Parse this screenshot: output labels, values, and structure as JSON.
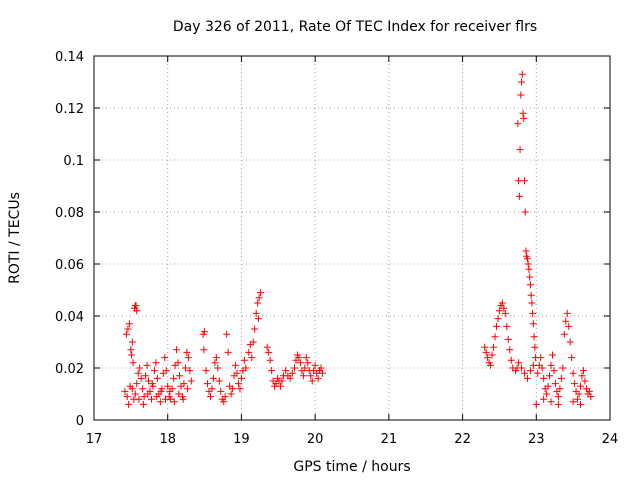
{
  "chart_data": {
    "type": "scatter",
    "title": "Day 326 of 2011, Rate Of TEC Index for receiver flrs",
    "xlabel": "GPS time / hours",
    "ylabel": "ROTI / TECUs",
    "xlim": [
      17,
      24
    ],
    "ylim": [
      0,
      0.14
    ],
    "xticks": [
      17,
      18,
      19,
      20,
      21,
      22,
      23,
      24
    ],
    "xtick_labels": [
      "17",
      "18",
      "19",
      "20",
      "21",
      "22",
      "23",
      "24"
    ],
    "yticks": [
      0,
      0.02,
      0.04,
      0.06,
      0.08,
      0.1,
      0.12,
      0.14
    ],
    "ytick_labels": [
      "0",
      "0.02",
      "0.04",
      "0.06",
      "0.08",
      "0.1",
      "0.12",
      "0.14"
    ],
    "grid": true,
    "marker": "+",
    "color": "#ff0000",
    "series": [
      {
        "name": "ROTI",
        "points": [
          [
            17.42,
            0.011
          ],
          [
            17.44,
            0.033
          ],
          [
            17.46,
            0.035
          ],
          [
            17.48,
            0.037
          ],
          [
            17.45,
            0.009
          ],
          [
            17.47,
            0.006
          ],
          [
            17.49,
            0.013
          ],
          [
            17.5,
            0.027
          ],
          [
            17.51,
            0.025
          ],
          [
            17.52,
            0.03
          ],
          [
            17.53,
            0.022
          ],
          [
            17.55,
            0.043
          ],
          [
            17.56,
            0.044
          ],
          [
            17.57,
            0.044
          ],
          [
            17.58,
            0.042
          ],
          [
            17.52,
            0.012
          ],
          [
            17.54,
            0.008
          ],
          [
            17.56,
            0.01
          ],
          [
            17.58,
            0.014
          ],
          [
            17.6,
            0.018
          ],
          [
            17.62,
            0.02
          ],
          [
            17.64,
            0.016
          ],
          [
            17.66,
            0.012
          ],
          [
            17.68,
            0.009
          ],
          [
            17.7,
            0.017
          ],
          [
            17.72,
            0.021
          ],
          [
            17.74,
            0.015
          ],
          [
            17.76,
            0.011
          ],
          [
            17.78,
            0.008
          ],
          [
            17.8,
            0.013
          ],
          [
            17.82,
            0.019
          ],
          [
            17.84,
            0.022
          ],
          [
            17.86,
            0.016
          ],
          [
            17.88,
            0.01
          ],
          [
            17.9,
            0.007
          ],
          [
            17.92,
            0.012
          ],
          [
            17.94,
            0.018
          ],
          [
            17.96,
            0.024
          ],
          [
            17.98,
            0.019
          ],
          [
            18.0,
            0.013
          ],
          [
            18.02,
            0.009
          ],
          [
            18.04,
            0.008
          ],
          [
            18.06,
            0.012
          ],
          [
            18.08,
            0.016
          ],
          [
            18.1,
            0.021
          ],
          [
            18.12,
            0.027
          ],
          [
            18.14,
            0.022
          ],
          [
            18.16,
            0.017
          ],
          [
            18.18,
            0.013
          ],
          [
            18.2,
            0.009
          ],
          [
            18.22,
            0.014
          ],
          [
            18.24,
            0.02
          ],
          [
            18.26,
            0.026
          ],
          [
            18.28,
            0.024
          ],
          [
            18.3,
            0.019
          ],
          [
            18.32,
            0.015
          ],
          [
            17.61,
            0.008
          ],
          [
            17.67,
            0.006
          ],
          [
            17.73,
            0.01
          ],
          [
            17.79,
            0.014
          ],
          [
            17.85,
            0.009
          ],
          [
            17.91,
            0.011
          ],
          [
            17.97,
            0.008
          ],
          [
            18.03,
            0.011
          ],
          [
            18.09,
            0.007
          ],
          [
            18.15,
            0.01
          ],
          [
            18.21,
            0.008
          ],
          [
            18.27,
            0.012
          ],
          [
            18.48,
            0.033
          ],
          [
            18.5,
            0.034
          ],
          [
            18.49,
            0.027
          ],
          [
            18.52,
            0.019
          ],
          [
            18.54,
            0.014
          ],
          [
            18.56,
            0.011
          ],
          [
            18.58,
            0.009
          ],
          [
            18.6,
            0.012
          ],
          [
            18.62,
            0.016
          ],
          [
            18.64,
            0.022
          ],
          [
            18.66,
            0.024
          ],
          [
            18.68,
            0.02
          ],
          [
            18.7,
            0.015
          ],
          [
            18.72,
            0.011
          ],
          [
            18.74,
            0.008
          ],
          [
            18.76,
            0.007
          ],
          [
            18.78,
            0.009
          ],
          [
            18.8,
            0.033
          ],
          [
            18.82,
            0.026
          ],
          [
            18.84,
            0.013
          ],
          [
            18.86,
            0.01
          ],
          [
            18.88,
            0.012
          ],
          [
            18.9,
            0.017
          ],
          [
            18.92,
            0.021
          ],
          [
            18.94,
            0.018
          ],
          [
            18.96,
            0.014
          ],
          [
            18.98,
            0.012
          ],
          [
            19.0,
            0.016
          ],
          [
            19.02,
            0.019
          ],
          [
            19.04,
            0.023
          ],
          [
            19.06,
            0.02
          ],
          [
            19.1,
            0.026
          ],
          [
            19.12,
            0.029
          ],
          [
            19.14,
            0.024
          ],
          [
            19.16,
            0.03
          ],
          [
            19.18,
            0.035
          ],
          [
            19.2,
            0.041
          ],
          [
            19.22,
            0.045
          ],
          [
            19.24,
            0.047
          ],
          [
            19.26,
            0.049
          ],
          [
            19.23,
            0.039
          ],
          [
            19.35,
            0.028
          ],
          [
            19.37,
            0.026
          ],
          [
            19.39,
            0.023
          ],
          [
            19.41,
            0.019
          ],
          [
            19.43,
            0.015
          ],
          [
            19.45,
            0.013
          ],
          [
            19.47,
            0.014
          ],
          [
            19.49,
            0.016
          ],
          [
            19.51,
            0.015
          ],
          [
            19.53,
            0.013
          ],
          [
            19.55,
            0.015
          ],
          [
            19.57,
            0.017
          ],
          [
            19.6,
            0.019
          ],
          [
            19.63,
            0.017
          ],
          [
            19.66,
            0.016
          ],
          [
            19.69,
            0.018
          ],
          [
            19.72,
            0.02
          ],
          [
            19.74,
            0.023
          ],
          [
            19.76,
            0.025
          ],
          [
            19.78,
            0.024
          ],
          [
            19.8,
            0.022
          ],
          [
            19.82,
            0.019
          ],
          [
            19.84,
            0.017
          ],
          [
            19.86,
            0.02
          ],
          [
            19.88,
            0.024
          ],
          [
            19.9,
            0.022
          ],
          [
            19.92,
            0.019
          ],
          [
            19.94,
            0.017
          ],
          [
            19.96,
            0.015
          ],
          [
            19.98,
            0.019
          ],
          [
            20.0,
            0.021
          ],
          [
            20.02,
            0.018
          ],
          [
            20.04,
            0.016
          ],
          [
            20.06,
            0.019
          ],
          [
            20.08,
            0.02
          ],
          [
            20.1,
            0.018
          ],
          [
            22.3,
            0.028
          ],
          [
            22.32,
            0.026
          ],
          [
            22.34,
            0.024
          ],
          [
            22.36,
            0.022
          ],
          [
            22.38,
            0.021
          ],
          [
            22.4,
            0.025
          ],
          [
            22.42,
            0.028
          ],
          [
            22.44,
            0.032
          ],
          [
            22.46,
            0.036
          ],
          [
            22.48,
            0.039
          ],
          [
            22.5,
            0.042
          ],
          [
            22.52,
            0.044
          ],
          [
            22.54,
            0.045
          ],
          [
            22.56,
            0.043
          ],
          [
            22.58,
            0.041
          ],
          [
            22.6,
            0.036
          ],
          [
            22.62,
            0.031
          ],
          [
            22.64,
            0.027
          ],
          [
            22.66,
            0.023
          ],
          [
            22.68,
            0.02
          ],
          [
            22.72,
            0.019
          ],
          [
            22.74,
            0.02
          ],
          [
            22.75,
            0.114
          ],
          [
            22.76,
            0.092
          ],
          [
            22.77,
            0.086
          ],
          [
            22.78,
            0.104
          ],
          [
            22.79,
            0.125
          ],
          [
            22.8,
            0.13
          ],
          [
            22.81,
            0.133
          ],
          [
            22.82,
            0.118
          ],
          [
            22.83,
            0.116
          ],
          [
            22.84,
            0.092
          ],
          [
            22.85,
            0.08
          ],
          [
            22.86,
            0.065
          ],
          [
            22.87,
            0.063
          ],
          [
            22.88,
            0.062
          ],
          [
            22.89,
            0.06
          ],
          [
            22.9,
            0.058
          ],
          [
            22.91,
            0.055
          ],
          [
            22.92,
            0.052
          ],
          [
            22.93,
            0.048
          ],
          [
            22.94,
            0.045
          ],
          [
            22.95,
            0.041
          ],
          [
            22.96,
            0.037
          ],
          [
            22.97,
            0.032
          ],
          [
            22.98,
            0.028
          ],
          [
            22.99,
            0.024
          ],
          [
            23.0,
            0.006
          ],
          [
            22.76,
            0.022
          ],
          [
            22.8,
            0.02
          ],
          [
            22.84,
            0.018
          ],
          [
            22.88,
            0.016
          ],
          [
            22.92,
            0.019
          ],
          [
            22.96,
            0.021
          ],
          [
            23.02,
            0.018
          ],
          [
            23.04,
            0.021
          ],
          [
            23.06,
            0.024
          ],
          [
            23.08,
            0.02
          ],
          [
            23.1,
            0.016
          ],
          [
            23.12,
            0.012
          ],
          [
            23.14,
            0.01
          ],
          [
            23.16,
            0.013
          ],
          [
            23.18,
            0.017
          ],
          [
            23.2,
            0.021
          ],
          [
            23.22,
            0.025
          ],
          [
            23.24,
            0.019
          ],
          [
            23.26,
            0.014
          ],
          [
            23.28,
            0.011
          ],
          [
            23.3,
            0.009
          ],
          [
            23.32,
            0.012
          ],
          [
            23.34,
            0.016
          ],
          [
            23.36,
            0.02
          ],
          [
            23.38,
            0.033
          ],
          [
            23.4,
            0.038
          ],
          [
            23.42,
            0.041
          ],
          [
            23.44,
            0.036
          ],
          [
            23.46,
            0.03
          ],
          [
            23.48,
            0.024
          ],
          [
            23.5,
            0.018
          ],
          [
            23.52,
            0.014
          ],
          [
            23.54,
            0.011
          ],
          [
            23.56,
            0.008
          ],
          [
            23.58,
            0.01
          ],
          [
            23.6,
            0.013
          ],
          [
            23.62,
            0.017
          ],
          [
            23.64,
            0.019
          ],
          [
            23.66,
            0.015
          ],
          [
            23.68,
            0.012
          ],
          [
            23.7,
            0.01
          ],
          [
            23.72,
            0.011
          ],
          [
            23.74,
            0.009
          ],
          [
            23.1,
            0.008
          ],
          [
            23.2,
            0.007
          ],
          [
            23.3,
            0.006
          ],
          [
            23.5,
            0.007
          ],
          [
            23.6,
            0.006
          ]
        ]
      }
    ]
  }
}
